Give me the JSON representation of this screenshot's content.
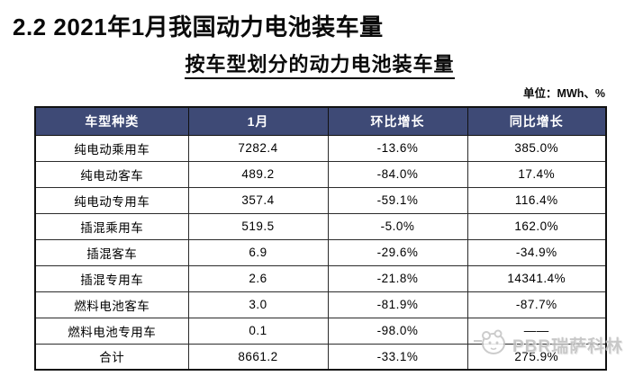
{
  "page": {
    "section_title": "2.2 2021年1月我国动力电池装车量",
    "table_title": "按车型划分的动力电池装车量",
    "unit_label": "单位：MWh、%"
  },
  "colors": {
    "header_bg": "#3E4A76",
    "header_text": "#FFFFFF",
    "outer_border": "#111111",
    "inner_border": "#2B2B2B"
  },
  "watermark": {
    "text": "PBR瑞萨科林",
    "icon": "mascot-logo-icon"
  },
  "chart_data": {
    "type": "table",
    "title": "按车型划分的动力电池装车量",
    "unit": "MWh、%",
    "columns": [
      "车型种类",
      "1月",
      "环比增长",
      "同比增长"
    ],
    "rows": [
      [
        "纯电动乘用车",
        "7282.4",
        "-13.6%",
        "385.0%"
      ],
      [
        "纯电动客车",
        "489.2",
        "-84.0%",
        "17.4%"
      ],
      [
        "纯电动专用车",
        "357.4",
        "-59.1%",
        "116.4%"
      ],
      [
        "插混乘用车",
        "519.5",
        "-5.0%",
        "162.0%"
      ],
      [
        "插混客车",
        "6.9",
        "-29.6%",
        "-34.9%"
      ],
      [
        "插混专用车",
        "2.6",
        "-21.8%",
        "14341.4%"
      ],
      [
        "燃料电池客车",
        "3.0",
        "-81.9%",
        "-87.7%"
      ],
      [
        "燃料电池专用车",
        "0.1",
        "-98.0%",
        "——"
      ],
      [
        "合计",
        "8661.2",
        "-33.1%",
        "275.9%"
      ]
    ]
  }
}
